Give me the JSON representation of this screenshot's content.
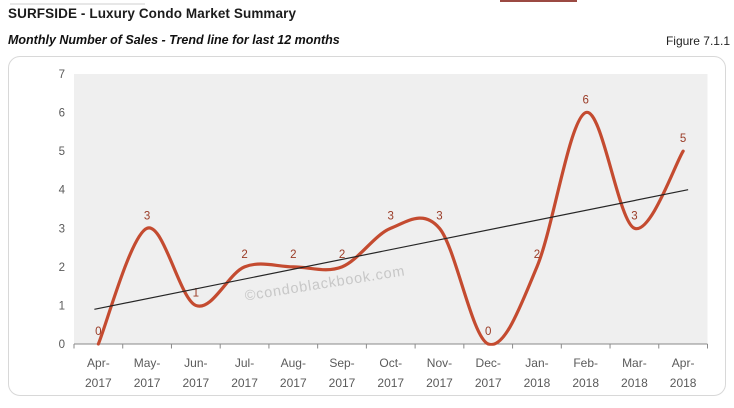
{
  "header": {
    "title": "SURFSIDE - Luxury Condo Market Summary",
    "subtitle": "Monthly Number of Sales - Trend line for last 12 months",
    "figure_label": "Figure 7.1.1"
  },
  "watermark": {
    "text": "©condoblackbook.com"
  },
  "chart_data": {
    "type": "line",
    "title": "Monthly Number of Sales - Trend line for last 12 months",
    "categories": [
      "Apr-2017",
      "May-2017",
      "Jun-2017",
      "Jul-2017",
      "Aug-2017",
      "Sep-2017",
      "Oct-2017",
      "Nov-2017",
      "Dec-2017",
      "Jan-2018",
      "Feb-2018",
      "Mar-2018",
      "Apr-2018"
    ],
    "series": [
      {
        "name": "Monthly Number of Sales",
        "kind": "smooth-line",
        "values": [
          0,
          3,
          1,
          2,
          2,
          2,
          3,
          3,
          0,
          2,
          6,
          3,
          5
        ],
        "color": "#c44b30",
        "data_labels": true
      },
      {
        "name": "Trend line",
        "kind": "linear-trend",
        "start_value": 0.9,
        "end_value": 4.0,
        "color": "#262626"
      }
    ],
    "xlabel": "",
    "ylabel": "",
    "ylim": [
      0,
      7
    ],
    "yticks": [
      0,
      1,
      2,
      3,
      4,
      5,
      6,
      7
    ],
    "grid": false,
    "legend_position": "none",
    "plot_bg": "#efefef",
    "data_label_color": "#9a3b26",
    "axis_text_color": "#5a5a5a",
    "axis_line_color": "#8a8a8a"
  }
}
